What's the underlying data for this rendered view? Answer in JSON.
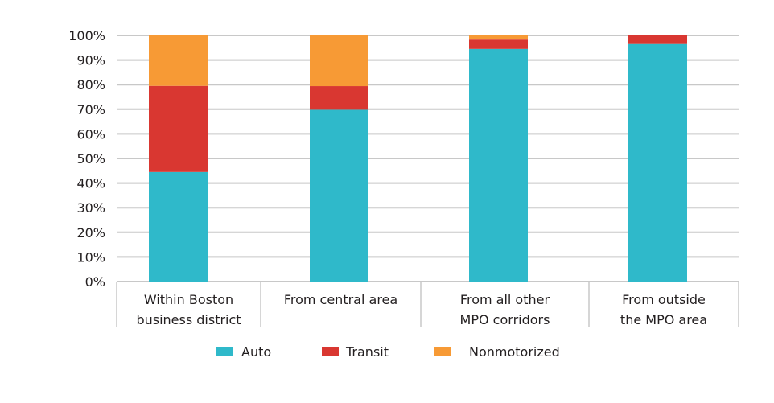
{
  "chart_data": {
    "type": "bar",
    "stacked": true,
    "categories": [
      [
        "Within Boston",
        "business district"
      ],
      [
        "From central area"
      ],
      [
        "From all other",
        "MPO corridors"
      ],
      [
        "From outside",
        "the MPO area"
      ]
    ],
    "series": [
      {
        "name": "Auto",
        "color": "#2fb9ca",
        "values": [
          44.5,
          69.8,
          94.5,
          96.5
        ]
      },
      {
        "name": "Transit",
        "color": "#d93731",
        "values": [
          35.0,
          9.6,
          3.8,
          3.5
        ]
      },
      {
        "name": "Nonmotorized",
        "color": "#f79a35",
        "values": [
          20.5,
          20.6,
          1.7,
          0
        ]
      }
    ],
    "ylim": [
      0,
      100
    ],
    "yticks": [
      "0%",
      "10%",
      "20%",
      "30%",
      "40%",
      "50%",
      "60%",
      "70%",
      "80%",
      "90%",
      "100%"
    ],
    "grid": true,
    "legend": "bottom",
    "xlabel": "",
    "ylabel": "",
    "title": ""
  }
}
